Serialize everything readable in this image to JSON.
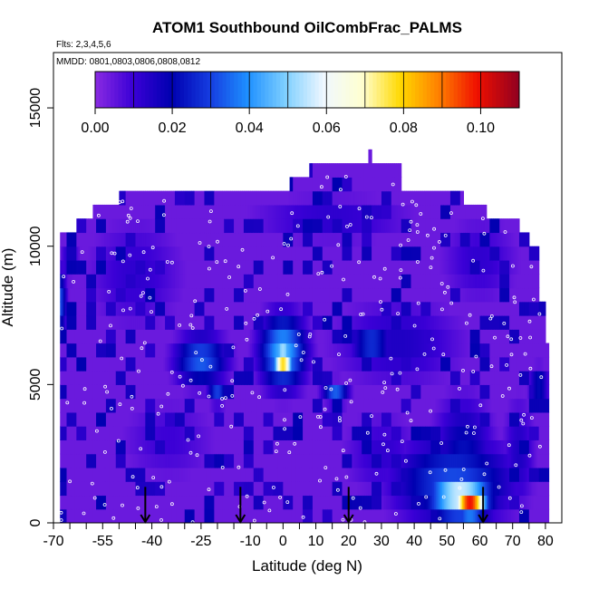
{
  "chart_data": {
    "type": "heatmap",
    "title": "ATOM1 Southbound OilCombFrac_PALMS",
    "subtitle": "Flts: 2,3,4,5,6",
    "annotation": "MMDD: 0801,0803,0806,0808,0812",
    "xlabel": "Latitude (deg N)",
    "ylabel": "Altitude (m)",
    "xlim": [
      -70,
      85
    ],
    "ylim": [
      0,
      17000
    ],
    "x_ticks": [
      -70,
      -55,
      -40,
      -25,
      -10,
      0,
      10,
      20,
      30,
      40,
      50,
      60,
      70,
      80
    ],
    "x_tick_labels": [
      "-70",
      "-55",
      "-40",
      "-25",
      "-10",
      "0",
      "10",
      "20",
      "30",
      "40",
      "50",
      "60",
      "70",
      "80"
    ],
    "x_minor_ticks": [
      -65,
      -60,
      -50,
      -45,
      -35,
      -30,
      -20,
      -15,
      -5,
      5,
      15,
      25,
      35,
      45,
      55,
      65,
      75
    ],
    "y_ticks": [
      0,
      5000,
      10000,
      15000
    ],
    "y_tick_labels": [
      "0",
      "5000",
      "10000",
      "15000"
    ],
    "colorbar": {
      "range": [
        0,
        0.11
      ],
      "ticks": [
        0,
        0.02,
        0.04,
        0.06,
        0.08,
        0.1
      ],
      "tick_labels": [
        "0.00",
        "0.02",
        "0.04",
        "0.06",
        "0.08",
        "0.10"
      ]
    },
    "background_value": 0.004,
    "domain_envelope": [
      [
        -68,
        0,
        10500
      ],
      [
        -63,
        0,
        11000
      ],
      [
        -58,
        0,
        11500
      ],
      [
        -50,
        0,
        12000
      ],
      [
        -18,
        0,
        12000
      ],
      [
        2,
        0,
        12500
      ],
      [
        8,
        0,
        13000
      ],
      [
        24,
        0,
        13000
      ],
      [
        26,
        0,
        13500
      ],
      [
        27,
        0,
        13000
      ],
      [
        32,
        0,
        13000
      ],
      [
        36,
        0,
        12000
      ],
      [
        50,
        0,
        12000
      ],
      [
        55,
        0,
        11500
      ],
      [
        62,
        0,
        11000
      ],
      [
        72,
        0,
        10500
      ],
      [
        75,
        0,
        10000
      ],
      [
        78,
        0,
        8000
      ],
      [
        80,
        0,
        6500
      ]
    ],
    "features": [
      {
        "lat": 57,
        "alt": 700,
        "dlat": 5,
        "dalt": 450,
        "value": 0.1
      },
      {
        "lat": 54,
        "alt": 1000,
        "dlat": 10,
        "dalt": 900,
        "value": 0.06
      },
      {
        "lat": 52,
        "alt": 1500,
        "dlat": 18,
        "dalt": 1500,
        "value": 0.032
      },
      {
        "lat": 55,
        "alt": 2500,
        "dlat": 9,
        "dalt": 2000,
        "value": 0.022
      },
      {
        "lat": 0,
        "alt": 5900,
        "dlat": 3,
        "dalt": 500,
        "value": 0.085
      },
      {
        "lat": 0,
        "alt": 6200,
        "dlat": 7,
        "dalt": 1300,
        "value": 0.045
      },
      {
        "lat": -25,
        "alt": 5900,
        "dlat": 8,
        "dalt": 900,
        "value": 0.034
      },
      {
        "lat": -20,
        "alt": 4700,
        "dlat": 3,
        "dalt": 400,
        "value": 0.03
      },
      {
        "lat": 16,
        "alt": 4700,
        "dlat": 4,
        "dalt": 400,
        "value": 0.034
      },
      {
        "lat": 27,
        "alt": 6500,
        "dlat": 6,
        "dalt": 700,
        "value": 0.03
      },
      {
        "lat": -68,
        "alt": 8000,
        "dlat": 2,
        "dalt": 1200,
        "value": 0.032
      },
      {
        "lat": -65,
        "alt": 9500,
        "dlat": 3,
        "dalt": 700,
        "value": 0.015
      },
      {
        "lat": 78,
        "alt": 5000,
        "dlat": 3,
        "dalt": 600,
        "value": 0.025
      },
      {
        "lat": 35,
        "alt": 6500,
        "dlat": 20,
        "dalt": 1500,
        "value": 0.015
      },
      {
        "lat": -45,
        "alt": 9000,
        "dlat": 15,
        "dalt": 2000,
        "value": 0.012
      },
      {
        "lat": 15,
        "alt": 11000,
        "dlat": 25,
        "dalt": 800,
        "value": 0.013
      },
      {
        "lat": 60,
        "alt": 9500,
        "dlat": 12,
        "dalt": 1500,
        "value": 0.012
      },
      {
        "lat": -35,
        "alt": 3000,
        "dlat": 15,
        "dalt": 1500,
        "value": 0.01
      },
      {
        "lat": 30,
        "alt": 2500,
        "dlat": 12,
        "dalt": 1500,
        "value": 0.012
      },
      {
        "lat": 72,
        "alt": 2500,
        "dlat": 5,
        "dalt": 2000,
        "value": 0.015
      }
    ],
    "obs_points_count": 320,
    "southbound_arrows_lat": [
      -42,
      -13,
      20,
      61
    ]
  }
}
